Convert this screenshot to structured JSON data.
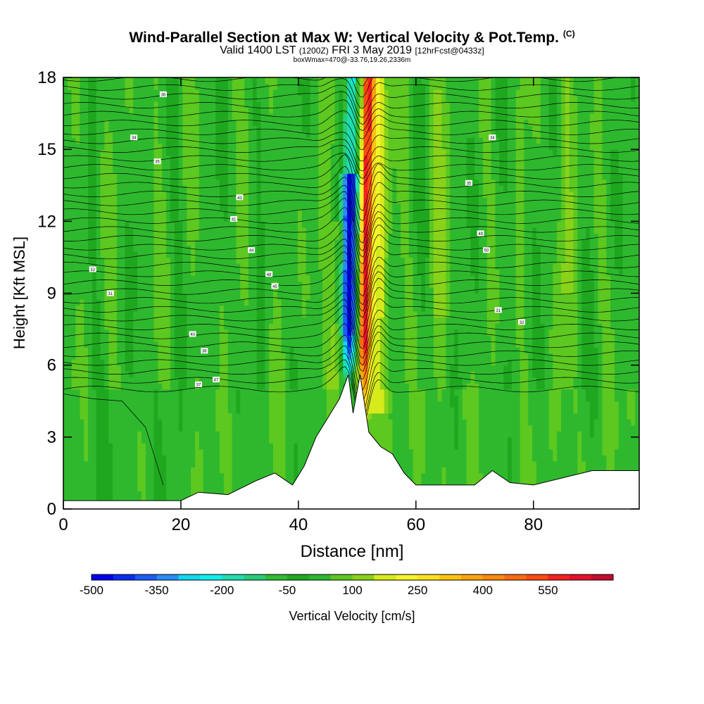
{
  "chart_data": {
    "type": "heatmap",
    "title": "Wind-Parallel Section at Max W: Vertical Velocity & Pot.Temp.",
    "title_mark": "(C)",
    "subtitle_parts": {
      "valid": "Valid 1400 LST",
      "utc": "(1200Z)",
      "date": "FRI 3 May 2019",
      "forecast": "[12hrFcst@0433z]"
    },
    "box_line": "boxWmax=470@-33.76,19.26,2336m",
    "xlabel": "Distance [nm]",
    "ylabel": "Height [Kft MSL]",
    "xlim": [
      0,
      98
    ],
    "ylim": [
      0,
      18
    ],
    "xticks": [
      0,
      20,
      40,
      60,
      80
    ],
    "yticks": [
      0,
      3,
      6,
      9,
      12,
      15,
      18
    ],
    "colorbar": {
      "label": "Vertical Velocity [cm/s]",
      "min": -500,
      "max": 700,
      "step": 50,
      "tick_labels": [
        "-500",
        "-350",
        "-200",
        "-50",
        "100",
        "250",
        "400",
        "550"
      ],
      "tick_values": [
        -500,
        -350,
        -200,
        -50,
        100,
        250,
        400,
        550
      ],
      "colors": [
        "#0000ee",
        "#0a2cf0",
        "#1a5cf5",
        "#2a8cf5",
        "#10d8f0",
        "#10eeee",
        "#20ddb0",
        "#28cc78",
        "#30bb30",
        "#1fa81f",
        "#2eb82e",
        "#5cc820",
        "#88d21a",
        "#d6ea1c",
        "#f4f42a",
        "#ffe020",
        "#fcc410",
        "#fca40c",
        "#fc880c",
        "#fc6a10",
        "#ff4a10",
        "#f62020",
        "#e6102a",
        "#c60a30"
      ]
    },
    "terrain_profile_kft": [
      [
        0,
        0.35
      ],
      [
        20,
        0.35
      ],
      [
        23,
        0.7
      ],
      [
        28,
        0.6
      ],
      [
        33,
        1.2
      ],
      [
        36,
        1.5
      ],
      [
        39,
        1.0
      ],
      [
        41,
        1.8
      ],
      [
        43,
        3.0
      ],
      [
        45,
        3.8
      ],
      [
        47,
        4.6
      ],
      [
        48.5,
        5.6
      ],
      [
        49.3,
        4.0
      ],
      [
        50.5,
        5.6
      ],
      [
        52,
        3.2
      ],
      [
        54,
        2.6
      ],
      [
        56,
        2.3
      ],
      [
        58,
        1.5
      ],
      [
        60,
        1.0
      ],
      [
        70,
        1.0
      ],
      [
        73,
        1.6
      ],
      [
        76,
        1.1
      ],
      [
        80,
        1.0
      ],
      [
        90,
        1.6
      ],
      [
        98,
        1.6
      ]
    ],
    "theta_label_samples": [
      "31",
      "32",
      "34",
      "35",
      "36",
      "37",
      "38",
      "40",
      "41",
      "43",
      "44",
      "45",
      "47",
      "48",
      "49",
      "50"
    ]
  }
}
